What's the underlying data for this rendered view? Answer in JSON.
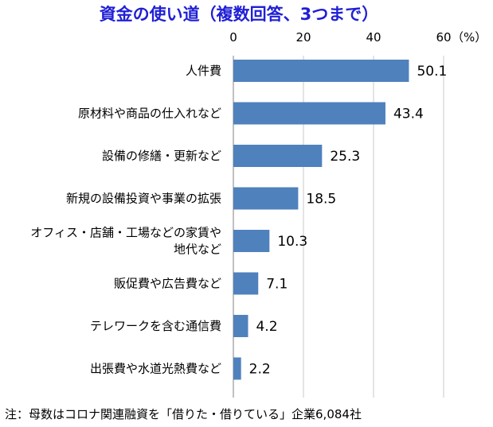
{
  "chart_data": {
    "type": "bar",
    "orientation": "horizontal",
    "title": "資金の使い道（複数回答、3つまで）",
    "unit_label": "（%）",
    "categories": [
      "人件費",
      "原材料や商品の仕入れなど",
      "設備の修繕・更新など",
      "新規の設備投資や事業の拡張",
      "オフィス・店舗・工場などの家賃や地代など",
      "販促費や広告費など",
      "テレワークを含む通信費",
      "出張費や水道光熱費など"
    ],
    "category_display": [
      [
        "人件費"
      ],
      [
        "原材料や商品の仕入れなど"
      ],
      [
        "設備の修繕・更新など"
      ],
      [
        "新規の設備投資や事業の拡張"
      ],
      [
        "オフィス・店舗・工場などの家賃や",
        "地代など"
      ],
      [
        "販促費や広告費など"
      ],
      [
        "テレワークを含む通信費"
      ],
      [
        "出張費や水道光熱費など"
      ]
    ],
    "values": [
      50.1,
      43.4,
      25.3,
      18.5,
      10.3,
      7.1,
      4.2,
      2.2
    ],
    "value_labels": [
      "50.1",
      "43.4",
      "25.3",
      "18.5",
      "10.3",
      "7.1",
      "4.2",
      "2.2"
    ],
    "xlim": [
      0,
      60
    ],
    "xticks": [
      0,
      20,
      40,
      60
    ],
    "xtick_labels": [
      "0",
      "20",
      "40",
      "60"
    ],
    "axis_position": "top",
    "grid": true,
    "bar_color": "#4f81bd",
    "grid_color": "#c8c8c8",
    "title_color": "#1f1fd6"
  },
  "note": "注：母数はコロナ関連融資を「借りた・借りている」企業6,084社"
}
